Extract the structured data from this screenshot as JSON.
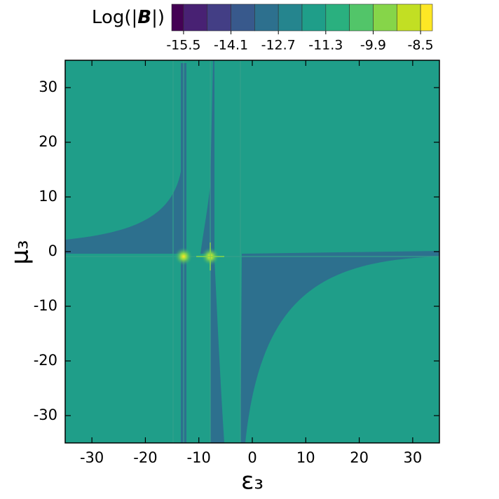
{
  "chart_data": {
    "type": "contour",
    "colorbar_label": [
      "Log(|",
      "B",
      "|)"
    ],
    "clim": [
      -15.85,
      -8.15
    ],
    "levels": [
      -15.5,
      -14.8,
      -14.1,
      -13.4,
      -12.7,
      -12.0,
      -11.3,
      -10.6,
      -9.9,
      -9.2,
      -8.5
    ],
    "colors": [
      "#440154",
      "#482173",
      "#433e85",
      "#38598c",
      "#2d708e",
      "#25858e",
      "#1f9e89",
      "#2ab07f",
      "#52c569",
      "#86d549",
      "#c2df23",
      "#fde725"
    ],
    "colorbar_ticks": [
      -15.5,
      -14.1,
      -12.7,
      -11.3,
      -9.9,
      -8.5
    ],
    "x_label": "ε₃",
    "y_label": "μ₃",
    "xlim": [
      -35,
      35
    ],
    "ylim": [
      -35,
      35
    ],
    "xticks": [
      -30,
      -20,
      -10,
      0,
      10,
      20,
      30
    ],
    "yticks": [
      -30,
      -20,
      -10,
      0,
      10,
      20,
      30
    ]
  }
}
